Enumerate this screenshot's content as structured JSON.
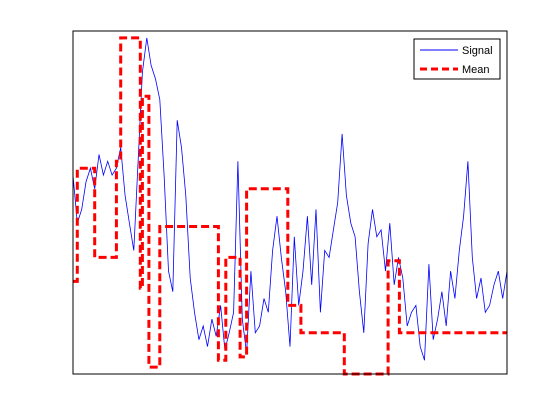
{
  "chart_data": {
    "type": "line",
    "title": "",
    "xlabel": "",
    "ylabel": "",
    "axis_ticks": "none",
    "grid": false,
    "legend_placement": "top-right",
    "xlim": [
      0,
      1000
    ],
    "ylim": [
      0,
      1
    ],
    "series": [
      {
        "name": "Signal",
        "color": "#0000ff",
        "style": "solid",
        "x": [
          0,
          10,
          20,
          30,
          40,
          50,
          60,
          70,
          80,
          90,
          100,
          110,
          120,
          130,
          140,
          150,
          160,
          170,
          180,
          190,
          200,
          210,
          220,
          230,
          240,
          250,
          260,
          270,
          280,
          290,
          300,
          310,
          320,
          330,
          340,
          350,
          360,
          370,
          380,
          390,
          400,
          410,
          420,
          430,
          440,
          450,
          460,
          470,
          480,
          490,
          500,
          510,
          520,
          530,
          540,
          550,
          560,
          570,
          580,
          590,
          600,
          610,
          620,
          630,
          640,
          650,
          660,
          670,
          680,
          690,
          700,
          710,
          720,
          730,
          740,
          750,
          760,
          770,
          780,
          790,
          800,
          810,
          820,
          830,
          840,
          850,
          860,
          870,
          880,
          890,
          900,
          910,
          920,
          930,
          940,
          950,
          960,
          970,
          980,
          990,
          1000
        ],
        "values": [
          0.58,
          0.44,
          0.48,
          0.56,
          0.6,
          0.54,
          0.64,
          0.58,
          0.62,
          0.58,
          0.6,
          0.66,
          0.52,
          0.44,
          0.36,
          0.62,
          0.88,
          0.98,
          0.9,
          0.86,
          0.8,
          0.58,
          0.3,
          0.24,
          0.74,
          0.66,
          0.52,
          0.28,
          0.18,
          0.1,
          0.14,
          0.08,
          0.16,
          0.11,
          0.2,
          0.07,
          0.12,
          0.18,
          0.62,
          0.16,
          0.06,
          0.3,
          0.12,
          0.14,
          0.22,
          0.18,
          0.36,
          0.46,
          0.34,
          0.24,
          0.08,
          0.4,
          0.2,
          0.3,
          0.46,
          0.26,
          0.48,
          0.18,
          0.36,
          0.34,
          0.42,
          0.5,
          0.7,
          0.52,
          0.44,
          0.4,
          0.24,
          0.12,
          0.38,
          0.48,
          0.4,
          0.42,
          0.3,
          0.44,
          0.26,
          0.34,
          0.28,
          0.14,
          0.18,
          0.2,
          0.08,
          0.04,
          0.32,
          0.1,
          0.16,
          0.24,
          0.14,
          0.3,
          0.22,
          0.36,
          0.46,
          0.62,
          0.34,
          0.22,
          0.28,
          0.18,
          0.2,
          0.26,
          0.3,
          0.22,
          0.3
        ]
      },
      {
        "name": "Mean",
        "color": "#ff0000",
        "style": "dashed",
        "x": [
          0,
          10,
          10,
          50,
          50,
          100,
          100,
          110,
          110,
          155,
          155,
          160,
          160,
          175,
          175,
          200,
          200,
          335,
          335,
          352,
          352,
          385,
          385,
          400,
          400,
          495,
          495,
          525,
          525,
          625,
          625,
          726,
          726,
          752,
          752,
          1000
        ],
        "values": [
          0.27,
          0.27,
          0.6,
          0.6,
          0.34,
          0.34,
          0.62,
          0.62,
          0.98,
          0.98,
          0.25,
          0.25,
          0.81,
          0.81,
          0.02,
          0.02,
          0.43,
          0.43,
          0.04,
          0.04,
          0.34,
          0.34,
          0.05,
          0.05,
          0.54,
          0.54,
          0.2,
          0.2,
          0.12,
          0.12,
          0.0,
          0.0,
          0.33,
          0.33,
          0.12,
          0.12
        ]
      }
    ]
  }
}
